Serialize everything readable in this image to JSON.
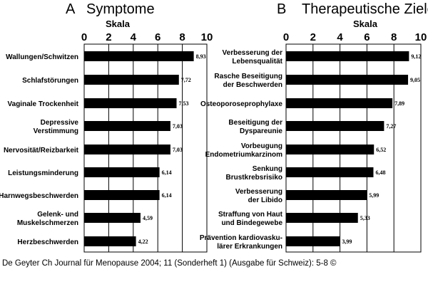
{
  "source_caption": "De Geyter Ch Journal für Menopause 2004; 11 (Sonderheft 1) (Ausgabe für Schweiz): 5-8 ©",
  "colors": {
    "bar": "#000000",
    "axis": "#000000",
    "background": "#ffffff"
  },
  "chart_data": [
    {
      "type": "bar",
      "orientation": "horizontal",
      "panel_letter": "A",
      "title": "Symptome",
      "xlabel": "Skala",
      "xlim": [
        0,
        10
      ],
      "ticks": [
        0,
        2,
        4,
        6,
        8,
        10
      ],
      "categories": [
        [
          "Wallungen/Schwitzen"
        ],
        [
          "Schlafstörungen"
        ],
        [
          "Vaginale Trockenheit"
        ],
        [
          "Depressive",
          "Verstimmung"
        ],
        [
          "Nervosität/Reizbarkeit"
        ],
        [
          "Leistungsminderung"
        ],
        [
          "Harnwegsbeschwerden"
        ],
        [
          "Gelenk- und",
          "Muskelschmerzen"
        ],
        [
          "Herzbeschwerden"
        ]
      ],
      "values": [
        8.93,
        7.72,
        7.53,
        7.03,
        7.03,
        6.14,
        6.14,
        4.59,
        4.22
      ],
      "value_labels": [
        "8,93",
        "7,72",
        "7,53",
        "7,03",
        "7,03",
        "6,14",
        "6,14",
        "4,59",
        "4,22"
      ]
    },
    {
      "type": "bar",
      "orientation": "horizontal",
      "panel_letter": "B",
      "title": "Therapeutische Ziele",
      "xlabel": "Skala",
      "xlim": [
        0,
        10
      ],
      "ticks": [
        0,
        2,
        4,
        6,
        8,
        10
      ],
      "categories": [
        [
          "Verbesserung der",
          "Lebensqualität"
        ],
        [
          "Rasche Beseitigung",
          "der Beschwerden"
        ],
        [
          "Osteoporoseprophylaxe"
        ],
        [
          "Beseitigung der",
          "Dyspareunie"
        ],
        [
          "Vorbeugung",
          "Endometriumkarzinom"
        ],
        [
          "Senkung",
          "Brustkrebsrisiko"
        ],
        [
          "Verbesserung",
          "der Libido"
        ],
        [
          "Straffung von Haut",
          "und Bindegewebe"
        ],
        [
          "Prävention kardiovasku-",
          "lärer Erkrankungen"
        ]
      ],
      "values": [
        9.12,
        9.05,
        7.89,
        7.27,
        6.52,
        6.48,
        5.99,
        5.33,
        3.99
      ],
      "value_labels": [
        "9,12",
        "9,05",
        "7,89",
        "7,27",
        "6,52",
        "6,48",
        "5,99",
        "5,33",
        "3,99"
      ]
    }
  ]
}
